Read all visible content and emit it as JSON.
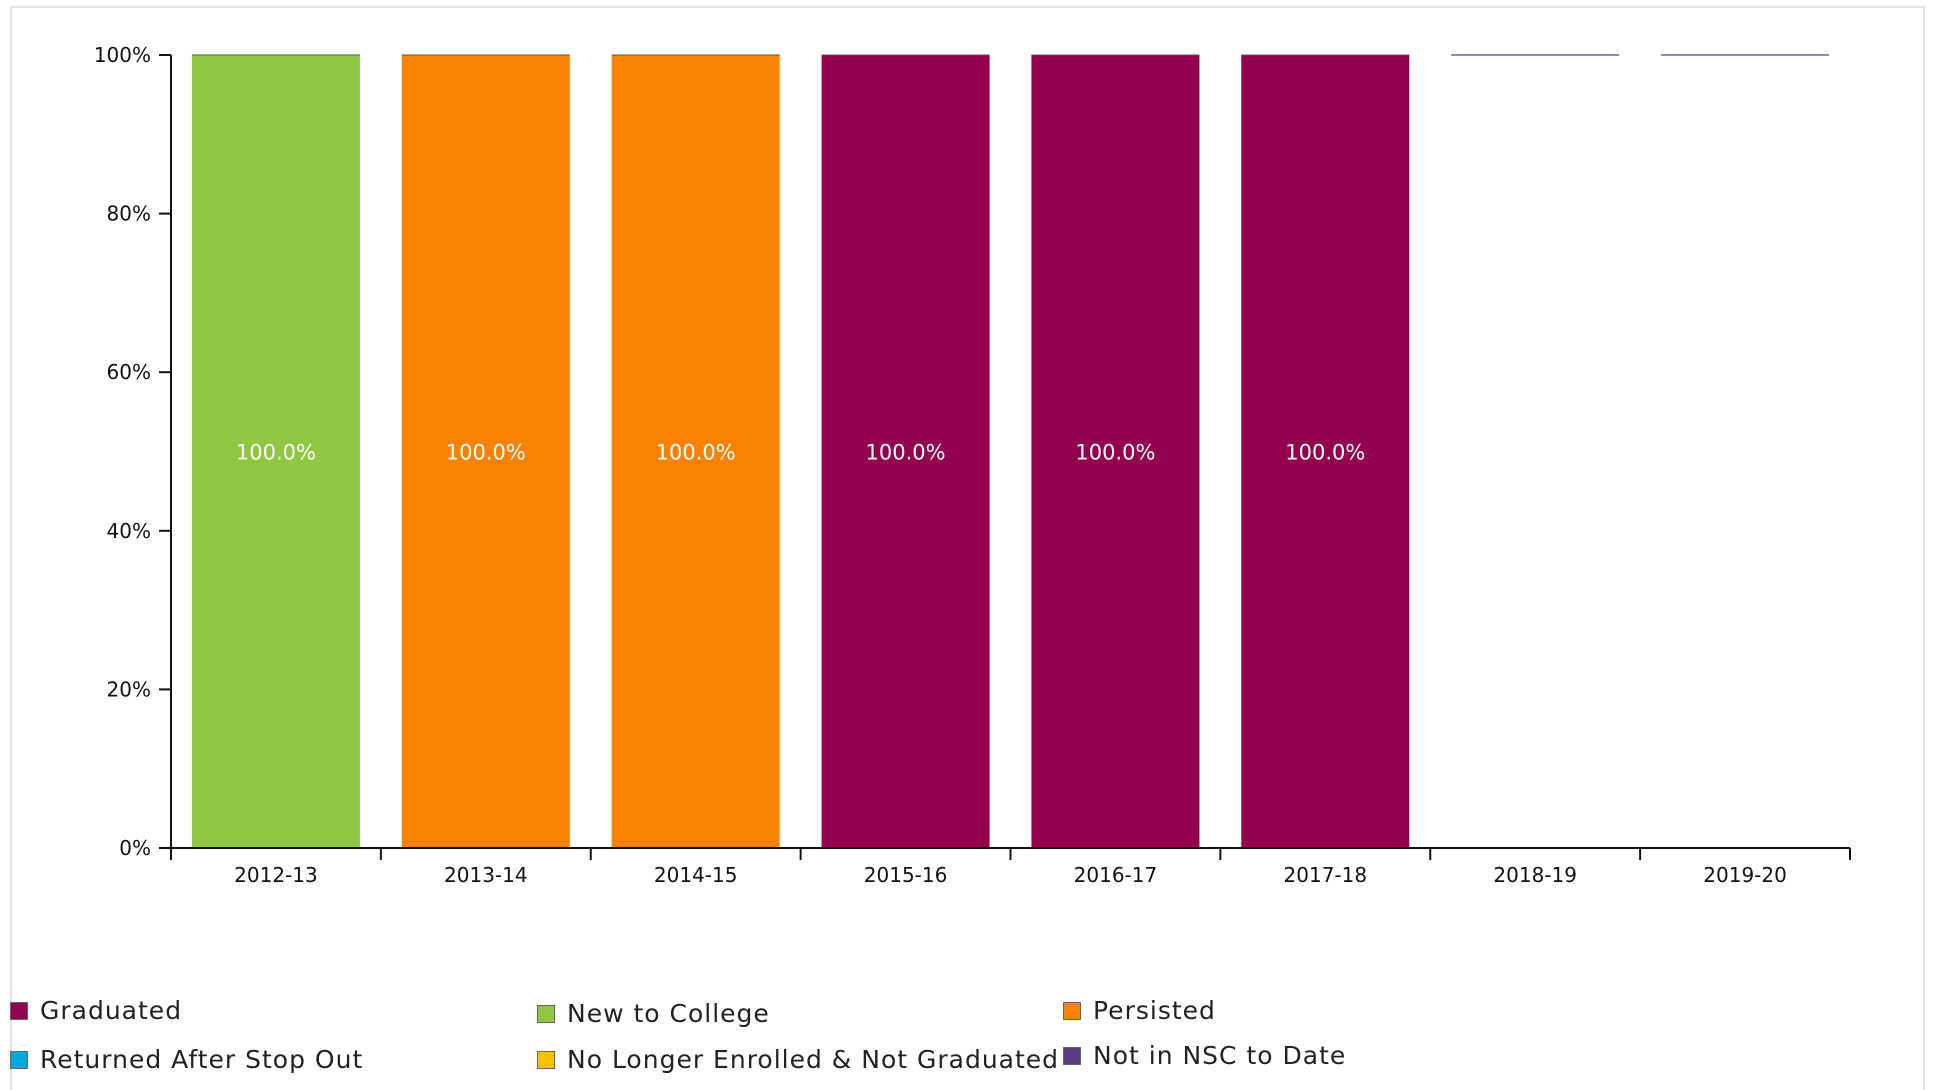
{
  "chart_data": {
    "type": "bar",
    "stacked": true,
    "categories": [
      "2012-13",
      "2013-14",
      "2014-15",
      "2015-16",
      "2016-17",
      "2017-18",
      "2018-19",
      "2019-20"
    ],
    "ylim": [
      0,
      100
    ],
    "yticks": [
      "0%",
      "20%",
      "40%",
      "60%",
      "80%",
      "100%"
    ],
    "series": [
      {
        "name": "Graduated",
        "color": "#93004e",
        "values": [
          0,
          0,
          0,
          100,
          100,
          100,
          0,
          0
        ]
      },
      {
        "name": "New to College",
        "color": "#8fc741",
        "values": [
          100,
          0,
          0,
          0,
          0,
          0,
          0,
          0
        ]
      },
      {
        "name": "Persisted",
        "color": "#f98200",
        "values": [
          0,
          100,
          100,
          0,
          0,
          0,
          0,
          0
        ]
      },
      {
        "name": "Returned After Stop Out",
        "color": "#00a8e0",
        "values": [
          0,
          0,
          0,
          0,
          0,
          0,
          0,
          0
        ]
      },
      {
        "name": "No Longer Enrolled & Not Graduated",
        "color": "#f7c200",
        "values": [
          0,
          0,
          0,
          0,
          0,
          0,
          0,
          0
        ]
      },
      {
        "name": "Not in NSC to Date",
        "color": "#5b3e84",
        "values": [
          0,
          0,
          0,
          0,
          0,
          0,
          0,
          0
        ]
      }
    ],
    "data_labels": [
      "100.0%",
      "100.0%",
      "100.0%",
      "100.0%",
      "100.0%",
      "100.0%",
      "",
      ""
    ],
    "legend_position": "bottom",
    "grid": false
  }
}
